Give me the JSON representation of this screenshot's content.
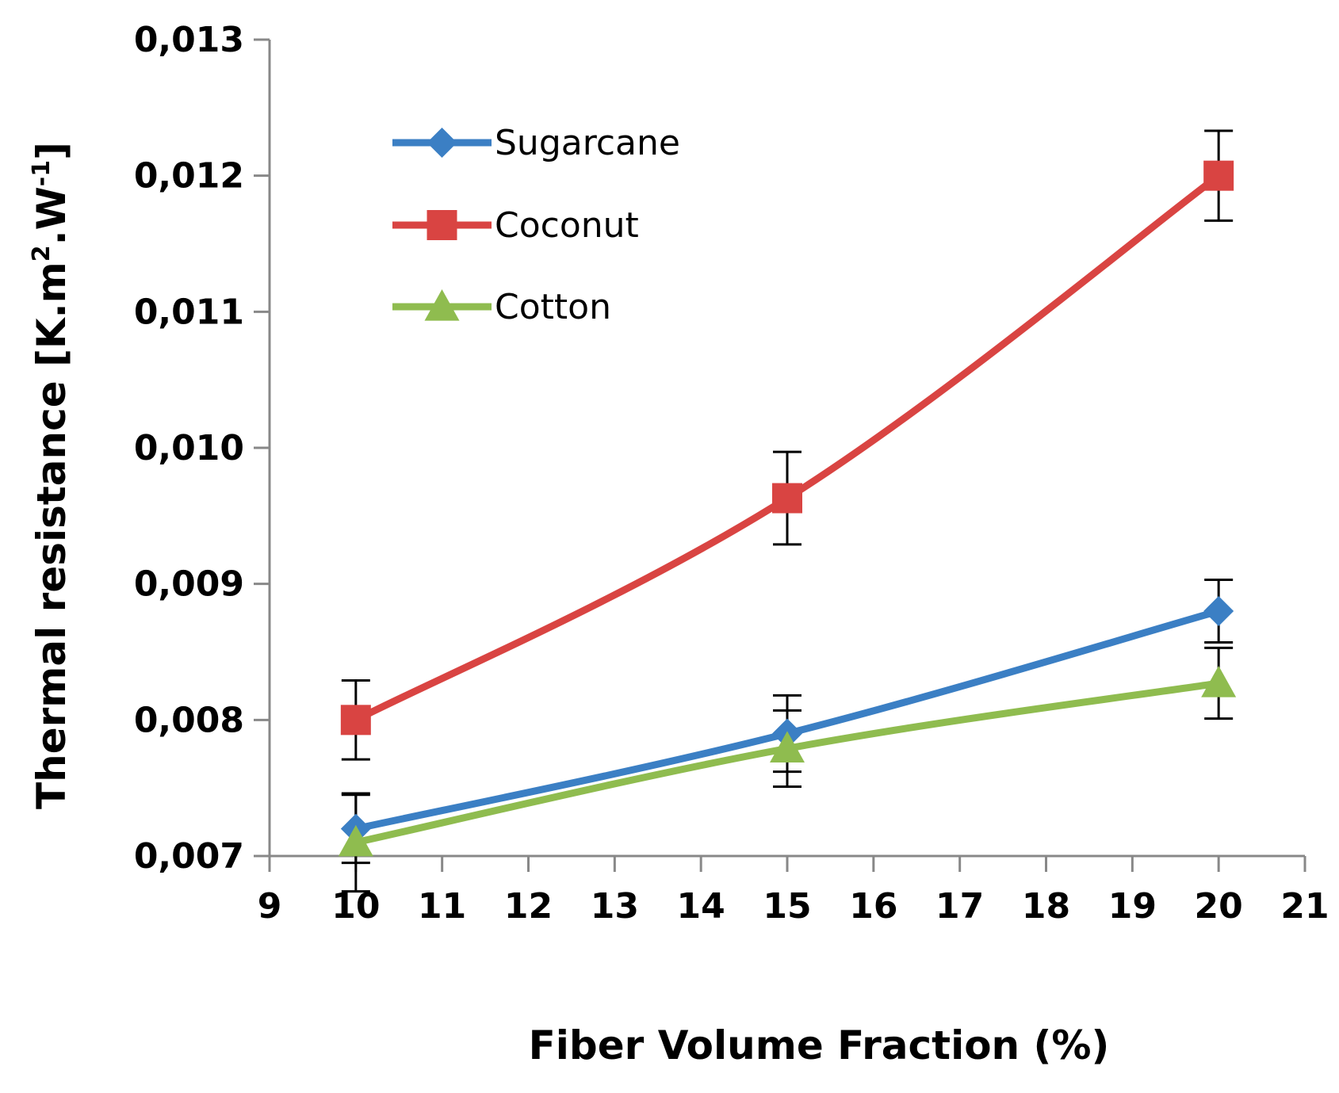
{
  "chart_data": {
    "type": "line",
    "title": "",
    "xlabel": "Fiber Volume Fraction (%)",
    "ylabel_main": "Thermal resistance [K.m",
    "ylabel_sup1": "2",
    "ylabel_mid": ".W",
    "ylabel_sup2": "-1",
    "ylabel_end": "]",
    "xlim": [
      9,
      21
    ],
    "ylim": [
      0.007,
      0.013
    ],
    "x_ticks": [
      9,
      10,
      11,
      12,
      13,
      14,
      15,
      16,
      17,
      18,
      19,
      20,
      21
    ],
    "x_tick_labels": [
      "9",
      "10",
      "11",
      "12",
      "13",
      "14",
      "15",
      "16",
      "17",
      "18",
      "19",
      "20",
      "21"
    ],
    "y_ticks": [
      0.007,
      0.008,
      0.009,
      0.01,
      0.011,
      0.012,
      0.013
    ],
    "y_tick_labels": [
      "0,007",
      "0,008",
      "0,009",
      "0,010",
      "0,011",
      "0,012",
      "0,013"
    ],
    "grid": false,
    "legend_position": "top-left",
    "series": [
      {
        "name": "Sugarcane",
        "color": "#3b7fc4",
        "marker": "diamond",
        "x": [
          10,
          15,
          20
        ],
        "y": [
          0.0072,
          0.0079,
          0.0088
        ],
        "err": [
          0.00025,
          0.00028,
          0.00023
        ]
      },
      {
        "name": "Coconut",
        "color": "#d94442",
        "marker": "square",
        "x": [
          10,
          15,
          20
        ],
        "y": [
          0.008,
          0.00963,
          0.012
        ],
        "err": [
          0.00029,
          0.00034,
          0.00033
        ]
      },
      {
        "name": "Cotton",
        "color": "#8fbc4f",
        "marker": "triangle",
        "x": [
          10,
          15,
          20
        ],
        "y": [
          0.0071,
          0.00779,
          0.00827
        ],
        "err": [
          0.00036,
          0.00028,
          0.00026
        ]
      }
    ]
  }
}
